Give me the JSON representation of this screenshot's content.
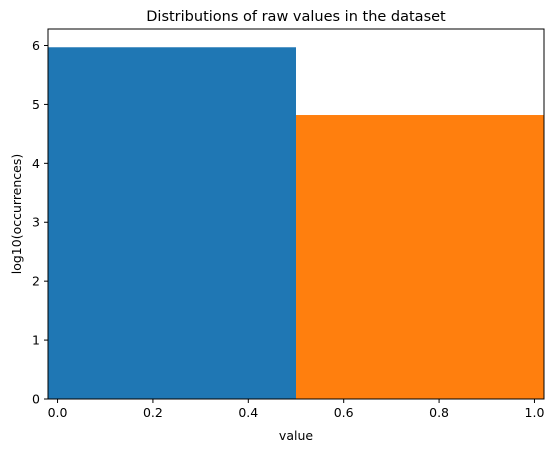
{
  "chart_data": {
    "type": "bar",
    "title": "Distributions of raw values in the dataset",
    "xlabel": "value",
    "ylabel": "log10(occurrences)",
    "xlim": [
      -0.02,
      1.02
    ],
    "ylim": [
      0,
      6.28
    ],
    "xticks": [
      0.0,
      0.2,
      0.4,
      0.6,
      0.8,
      1.0
    ],
    "xtick_labels": [
      "0.0",
      "0.2",
      "0.4",
      "0.6",
      "0.8",
      "1.0"
    ],
    "yticks": [
      0,
      1,
      2,
      3,
      4,
      5,
      6
    ],
    "ytick_labels": [
      "0",
      "1",
      "2",
      "3",
      "4",
      "5",
      "6"
    ],
    "grid": false,
    "legend": "none",
    "bars": [
      {
        "x_start": -0.02,
        "x_end": 0.5,
        "value": 5.97,
        "color": "#1f77b4"
      },
      {
        "x_start": 0.5,
        "x_end": 1.02,
        "value": 4.82,
        "color": "#ff7f0e"
      }
    ]
  }
}
